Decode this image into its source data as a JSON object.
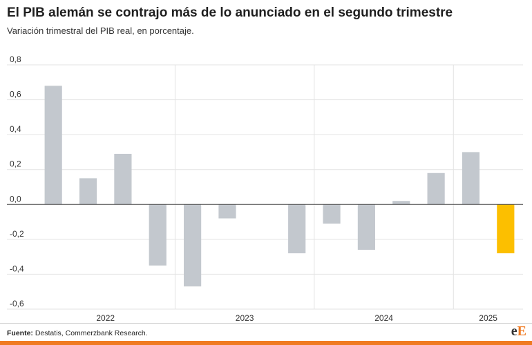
{
  "header": {
    "title": "El PIB alemán se contrajo más de lo anunciado en el segundo trimestre",
    "subtitle": "Variación trimestral del PIB real, en porcentaje."
  },
  "footer": {
    "source_label": "Fuente:",
    "source_text": "Destatis, Commerzbank Research."
  },
  "logo": {
    "first": "e",
    "second": "E"
  },
  "colors": {
    "bar_default": "#c3c8ce",
    "bar_highlight": "#fcbf00",
    "brand": "#f07a21"
  },
  "chart_data": {
    "type": "bar",
    "title": "El PIB alemán se contrajo más de lo anunciado en el segundo trimestre",
    "subtitle": "Variación trimestral del PIB real, en porcentaje.",
    "xlabel": "",
    "ylabel": "",
    "ylim": [
      -0.6,
      0.8
    ],
    "yticks": [
      0.8,
      0.6,
      0.4,
      0.2,
      0.0,
      -0.2,
      -0.4,
      -0.6
    ],
    "ytick_labels": [
      "0,8",
      "0,6",
      "0,4",
      "0,2",
      "0,0",
      "-0,2",
      "-0,4",
      "-0,6"
    ],
    "grid": true,
    "year_groups": [
      {
        "label": "2022",
        "quarters": 4
      },
      {
        "label": "2023",
        "quarters": 4
      },
      {
        "label": "2024",
        "quarters": 4
      },
      {
        "label": "2025",
        "quarters": 2
      }
    ],
    "values": [
      0.68,
      0.15,
      0.29,
      -0.35,
      -0.47,
      -0.08,
      0.0,
      -0.28,
      -0.11,
      -0.26,
      0.02,
      0.18,
      0.3,
      -0.28
    ],
    "highlight_index": 13
  }
}
